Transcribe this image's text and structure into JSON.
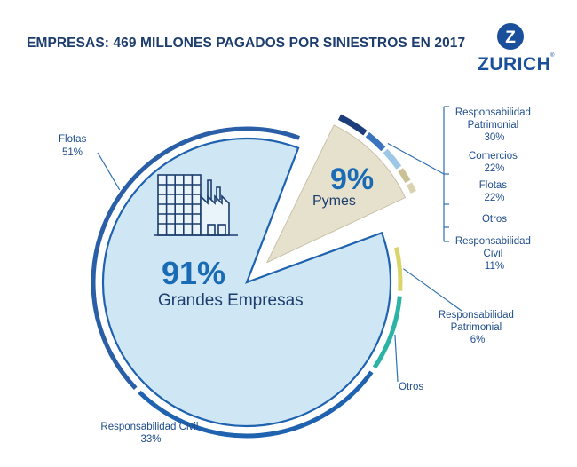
{
  "brand": {
    "name": "ZURICH",
    "mark": "Z",
    "registered": "®",
    "color": "#1a4f9c"
  },
  "chart_data": {
    "type": "pie",
    "title": "EMPRESAS: 469 MILLONES PAGADOS POR SINIESTROS EN 2017",
    "segments": [
      {
        "name": "Grandes Empresas",
        "value": 91,
        "value_label": "91%",
        "color": "#cfe6f4",
        "breakdown": [
          {
            "name": "Flotas",
            "value": 51,
            "value_label": "51%",
            "color": "#2a5fa8"
          },
          {
            "name": "Responsabilidad Patrimonial",
            "value": 6,
            "value_label": "6%",
            "color": "#1f9aa1"
          },
          {
            "name": "Otros",
            "value": 10,
            "value_label": "",
            "color": "#2bb3a5"
          },
          {
            "name": "Responsabilidad Civil",
            "value": 33,
            "value_label": "33%",
            "color": "#1e62b0"
          }
        ]
      },
      {
        "name": "Pymes",
        "value": 9,
        "value_label": "9%",
        "color": "#e6e1cc",
        "breakdown": [
          {
            "name": "Responsabilidad Patrimonial",
            "value": 30,
            "value_label": "30%",
            "color": "#1c3d7a"
          },
          {
            "name": "Comercios",
            "value": 22,
            "value_label": "22%",
            "color": "#3a74c0"
          },
          {
            "name": "Flotas",
            "value": 22,
            "value_label": "22%",
            "color": "#9cc7e6"
          },
          {
            "name": "Otros",
            "value": 15,
            "value_label": "",
            "color": "#c9c096"
          },
          {
            "name": "Responsabilidad Civil",
            "value": 11,
            "value_label": "11%",
            "color": "#d9d2b0"
          }
        ]
      }
    ],
    "labels": {
      "grandes": [
        {
          "lines": [
            "Flotas",
            "51%"
          ]
        },
        {
          "lines": [
            "Responsabilidad",
            "Patrimonial",
            "6%"
          ]
        },
        {
          "lines": [
            "Otros"
          ]
        },
        {
          "lines": [
            "Responsabilidad Civil",
            "33%"
          ]
        }
      ],
      "pymes": [
        {
          "lines": [
            "Responsabilidad",
            "Patrimonial",
            "30%"
          ]
        },
        {
          "lines": [
            "Comercios",
            "22%"
          ]
        },
        {
          "lines": [
            "Flotas",
            "22%"
          ]
        },
        {
          "lines": [
            "Otros"
          ]
        },
        {
          "lines": [
            "Responsabilidad",
            "Civil",
            "11%"
          ]
        }
      ]
    },
    "ring_colors": {
      "grandes_patrimonial": "#d9d56a",
      "pymes_highlight": "#d9d56a"
    }
  }
}
